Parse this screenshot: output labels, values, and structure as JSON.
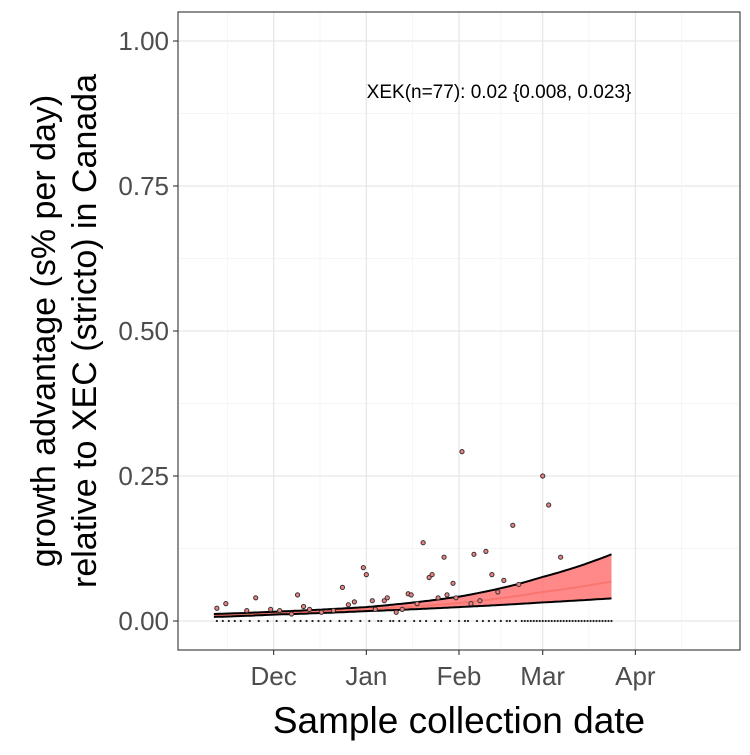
{
  "chart_data": {
    "type": "scatter",
    "title": "",
    "xlabel": "Sample collection date",
    "ylabel_lines": [
      "growth advantage (s% per day)",
      "relative to XEC (stricto) in Canada"
    ],
    "annotation": "XEK(n=77): 0.02 {0.008, 0.023}",
    "x_ticks": [
      "Dec",
      "Jan",
      "Feb",
      "Mar",
      "Apr"
    ],
    "x_tick_dates": [
      "2024-12-01",
      "2025-01-01",
      "2025-02-01",
      "2025-03-01",
      "2025-04-01"
    ],
    "xlim": [
      "2024-10-30",
      "2025-05-06"
    ],
    "y_ticks": [
      "0.00",
      "0.25",
      "0.50",
      "0.75",
      "1.00"
    ],
    "ylim": [
      -0.05,
      1.05
    ],
    "grid": true,
    "colors": {
      "fit_line": "#f8766d",
      "ribbon": "#ff6b6b",
      "bound": "#000000",
      "point_fill": "#f08080",
      "point_stroke": "#333333"
    },
    "fit": {
      "dates": [
        "2024-11-11",
        "2024-12-01",
        "2025-01-01",
        "2025-02-01",
        "2025-03-01",
        "2025-03-24"
      ],
      "mid": [
        0.01,
        0.014,
        0.02,
        0.031,
        0.05,
        0.068
      ],
      "lower": [
        0.007,
        0.011,
        0.017,
        0.024,
        0.032,
        0.039
      ],
      "upper": [
        0.012,
        0.016,
        0.024,
        0.042,
        0.076,
        0.115
      ]
    },
    "points": [
      {
        "date": "2024-11-12",
        "y": 0.022
      },
      {
        "date": "2024-11-15",
        "y": 0.03
      },
      {
        "date": "2024-11-22",
        "y": 0.018
      },
      {
        "date": "2024-11-25",
        "y": 0.04
      },
      {
        "date": "2024-11-30",
        "y": 0.02
      },
      {
        "date": "2024-12-03",
        "y": 0.018
      },
      {
        "date": "2024-12-07",
        "y": 0.012
      },
      {
        "date": "2024-12-09",
        "y": 0.045
      },
      {
        "date": "2024-12-11",
        "y": 0.025
      },
      {
        "date": "2024-12-13",
        "y": 0.02
      },
      {
        "date": "2024-12-17",
        "y": 0.015
      },
      {
        "date": "2024-12-21",
        "y": 0.018
      },
      {
        "date": "2024-12-24",
        "y": 0.058
      },
      {
        "date": "2024-12-26",
        "y": 0.028
      },
      {
        "date": "2024-12-28",
        "y": 0.033
      },
      {
        "date": "2024-12-31",
        "y": 0.092
      },
      {
        "date": "2025-01-01",
        "y": 0.08
      },
      {
        "date": "2025-01-03",
        "y": 0.035
      },
      {
        "date": "2025-01-04",
        "y": 0.02
      },
      {
        "date": "2025-01-07",
        "y": 0.035
      },
      {
        "date": "2025-01-08",
        "y": 0.04
      },
      {
        "date": "2025-01-11",
        "y": 0.015
      },
      {
        "date": "2025-01-13",
        "y": 0.02
      },
      {
        "date": "2025-01-15",
        "y": 0.047
      },
      {
        "date": "2025-01-16",
        "y": 0.045
      },
      {
        "date": "2025-01-18",
        "y": 0.03
      },
      {
        "date": "2025-01-20",
        "y": 0.135
      },
      {
        "date": "2025-01-22",
        "y": 0.075
      },
      {
        "date": "2025-01-23",
        "y": 0.08
      },
      {
        "date": "2025-01-25",
        "y": 0.04
      },
      {
        "date": "2025-01-27",
        "y": 0.11
      },
      {
        "date": "2025-01-28",
        "y": 0.045
      },
      {
        "date": "2025-01-30",
        "y": 0.065
      },
      {
        "date": "2025-01-31",
        "y": 0.04
      },
      {
        "date": "2025-02-02",
        "y": 0.292
      },
      {
        "date": "2025-02-05",
        "y": 0.03
      },
      {
        "date": "2025-02-06",
        "y": 0.115
      },
      {
        "date": "2025-02-08",
        "y": 0.035
      },
      {
        "date": "2025-02-10",
        "y": 0.12
      },
      {
        "date": "2025-02-12",
        "y": 0.08
      },
      {
        "date": "2025-02-14",
        "y": 0.05
      },
      {
        "date": "2025-02-16",
        "y": 0.07
      },
      {
        "date": "2025-02-19",
        "y": 0.165
      },
      {
        "date": "2025-02-21",
        "y": 0.063
      },
      {
        "date": "2025-03-01",
        "y": 0.25
      },
      {
        "date": "2025-03-03",
        "y": 0.2
      },
      {
        "date": "2025-03-07",
        "y": 0.11
      }
    ],
    "zero_dates": [
      "2024-11-12",
      "2024-11-14",
      "2024-11-16",
      "2024-11-18",
      "2024-11-20",
      "2024-11-23",
      "2024-11-26",
      "2024-11-29",
      "2024-12-02",
      "2024-12-05",
      "2024-12-08",
      "2024-12-10",
      "2024-12-12",
      "2024-12-14",
      "2024-12-16",
      "2024-12-18",
      "2024-12-20",
      "2024-12-23",
      "2024-12-25",
      "2024-12-27",
      "2024-12-30",
      "2025-01-02",
      "2025-01-05",
      "2025-01-06",
      "2025-01-09",
      "2025-01-10",
      "2025-01-12",
      "2025-01-14",
      "2025-01-17",
      "2025-01-19",
      "2025-01-21",
      "2025-01-24",
      "2025-01-26",
      "2025-01-29",
      "2025-02-01",
      "2025-02-03",
      "2025-02-04",
      "2025-02-07",
      "2025-02-09",
      "2025-02-11",
      "2025-02-13",
      "2025-02-15",
      "2025-02-17",
      "2025-02-18",
      "2025-02-20",
      "2025-02-22",
      "2025-02-23",
      "2025-02-24",
      "2025-02-25",
      "2025-02-26",
      "2025-02-27",
      "2025-02-28",
      "2025-03-01",
      "2025-03-02",
      "2025-03-03",
      "2025-03-04",
      "2025-03-05",
      "2025-03-06",
      "2025-03-07",
      "2025-03-08",
      "2025-03-09",
      "2025-03-10",
      "2025-03-11",
      "2025-03-12",
      "2025-03-13",
      "2025-03-14",
      "2025-03-15",
      "2025-03-16",
      "2025-03-17",
      "2025-03-18",
      "2025-03-19",
      "2025-03-20",
      "2025-03-21",
      "2025-03-22",
      "2025-03-23",
      "2025-03-24"
    ]
  }
}
